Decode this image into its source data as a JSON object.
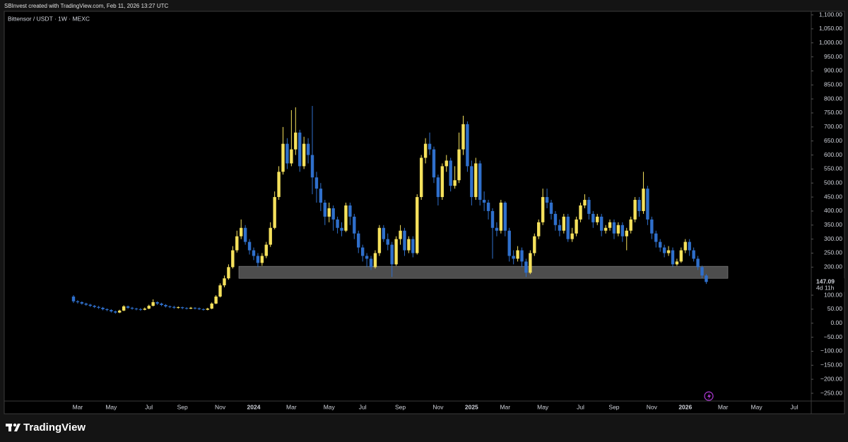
{
  "chart_data": {
    "type": "candlestick",
    "header": "SBInvest created with TradingView.com, Feb 11, 2026 13:27 UTC",
    "title": "Bittensor / USDT · 1W · MEXC",
    "brand": "TradingView",
    "up_color": "#f5e15c",
    "down_color": "#2f6fcb",
    "categories": [
      null,
      "Mar",
      null,
      null,
      null,
      null,
      null,
      null,
      null,
      "May",
      null,
      null,
      null,
      null,
      null,
      null,
      null,
      null,
      "Jul",
      null,
      null,
      null,
      null,
      null,
      null,
      null,
      "Sep",
      null,
      null,
      null,
      null,
      null,
      null,
      null,
      null,
      "Nov",
      null,
      null,
      null,
      null,
      null,
      null,
      null,
      "2024",
      null,
      null,
      null,
      null,
      null,
      null,
      null,
      null,
      "Mar",
      null,
      null,
      null,
      null,
      null,
      null,
      null,
      null,
      "May",
      null,
      null,
      null,
      null,
      null,
      null,
      null,
      "Jul",
      null,
      null,
      null,
      null,
      null,
      null,
      null,
      null,
      "Sep",
      null,
      null,
      null,
      null,
      null,
      null,
      null,
      null,
      "Nov",
      null,
      null,
      null,
      null,
      null,
      null,
      null,
      "2025",
      null,
      null,
      null,
      null,
      null,
      null,
      null,
      "Mar",
      null,
      null,
      null,
      null,
      null,
      null,
      null,
      null,
      "May",
      null,
      null,
      null,
      null,
      null,
      null,
      null,
      null,
      "Jul",
      null,
      null,
      null,
      null,
      null,
      null,
      null,
      "Sep",
      null,
      null,
      null,
      null,
      null,
      null,
      null,
      null,
      "Nov",
      null,
      null,
      null,
      null,
      null,
      null,
      null,
      "2026",
      null,
      null,
      null,
      null,
      null,
      null,
      null,
      null,
      "Mar",
      null,
      null,
      null,
      null,
      null,
      null,
      null,
      "May",
      null,
      null,
      null,
      null,
      null,
      null,
      null,
      null,
      "Jul",
      null,
      null,
      null
    ],
    "open": [
      95,
      78,
      75,
      70,
      66,
      62,
      58,
      55,
      50,
      47,
      42,
      38,
      45,
      60,
      55,
      52,
      50,
      48,
      52,
      62,
      75,
      70,
      65,
      60,
      58,
      55,
      57,
      54,
      52,
      55,
      53,
      50,
      48,
      52,
      70,
      95,
      135,
      160,
      200,
      260,
      310,
      340,
      290,
      260,
      240,
      215,
      240,
      280,
      340,
      450,
      540,
      640,
      570,
      620,
      680,
      560,
      640,
      600,
      520,
      480,
      430,
      380,
      410,
      370,
      340,
      330,
      420,
      380,
      320,
      270,
      240,
      230,
      200,
      250,
      340,
      300,
      280,
      210,
      300,
      330,
      260,
      300,
      250,
      450,
      590,
      640,
      620,
      520,
      450,
      560,
      580,
      490,
      510,
      620,
      710,
      560,
      450,
      570,
      440,
      430,
      400,
      340,
      330,
      430,
      330,
      240,
      230,
      260,
      220,
      180,
      250,
      310,
      360,
      450,
      430,
      390,
      350,
      330,
      380,
      300,
      320,
      370,
      420,
      440,
      390,
      360,
      380,
      330,
      340,
      360,
      320,
      350,
      310,
      330,
      370,
      440,
      400,
      480,
      370,
      320,
      290,
      270,
      250,
      260,
      210,
      220,
      260,
      290,
      260,
      230,
      200,
      170,
      null,
      null,
      null,
      null,
      null,
      null,
      null,
      null,
      null,
      null,
      null,
      null,
      null,
      null,
      null,
      null,
      null,
      null,
      null,
      null,
      null,
      null,
      null,
      null
    ],
    "high": [
      100,
      82,
      78,
      73,
      69,
      65,
      62,
      58,
      53,
      50,
      45,
      48,
      64,
      63,
      58,
      55,
      54,
      56,
      66,
      85,
      78,
      73,
      68,
      63,
      62,
      60,
      59,
      57,
      58,
      57,
      56,
      53,
      55,
      74,
      100,
      142,
      170,
      210,
      275,
      330,
      370,
      350,
      300,
      270,
      250,
      250,
      290,
      360,
      470,
      560,
      700,
      660,
      760,
      770,
      690,
      665,
      660,
      775,
      540,
      500,
      440,
      430,
      420,
      380,
      360,
      430,
      430,
      390,
      330,
      280,
      250,
      240,
      260,
      350,
      350,
      320,
      290,
      310,
      350,
      340,
      310,
      310,
      460,
      600,
      660,
      680,
      630,
      530,
      570,
      600,
      590,
      560,
      680,
      740,
      720,
      580,
      590,
      580,
      470,
      440,
      410,
      360,
      440,
      435,
      340,
      260,
      275,
      270,
      230,
      260,
      320,
      370,
      480,
      480,
      440,
      400,
      370,
      390,
      390,
      340,
      380,
      430,
      460,
      450,
      400,
      390,
      390,
      350,
      370,
      370,
      360,
      360,
      340,
      380,
      450,
      450,
      540,
      490,
      380,
      330,
      300,
      280,
      275,
      270,
      230,
      270,
      300,
      300,
      270,
      240,
      205,
      175,
      null,
      null,
      null,
      null,
      null,
      null,
      null,
      null,
      null,
      null,
      null,
      null,
      null,
      null,
      null,
      null,
      null,
      null,
      null,
      null,
      null,
      null,
      null,
      null
    ],
    "low": [
      72,
      70,
      66,
      62,
      58,
      54,
      51,
      46,
      43,
      38,
      34,
      36,
      43,
      51,
      48,
      46,
      44,
      46,
      50,
      60,
      65,
      61,
      56,
      54,
      51,
      52,
      50,
      49,
      50,
      49,
      47,
      45,
      46,
      50,
      68,
      92,
      128,
      155,
      195,
      252,
      300,
      280,
      245,
      225,
      200,
      205,
      232,
      272,
      335,
      440,
      530,
      550,
      560,
      600,
      540,
      550,
      570,
      460,
      430,
      400,
      350,
      360,
      330,
      320,
      310,
      325,
      350,
      300,
      250,
      220,
      200,
      190,
      195,
      240,
      290,
      260,
      165,
      205,
      280,
      240,
      250,
      235,
      245,
      440,
      570,
      600,
      500,
      420,
      440,
      540,
      470,
      480,
      500,
      600,
      540,
      420,
      440,
      420,
      400,
      370,
      230,
      310,
      320,
      310,
      220,
      210,
      220,
      200,
      165,
      175,
      240,
      300,
      350,
      410,
      370,
      330,
      310,
      320,
      290,
      290,
      310,
      360,
      410,
      370,
      340,
      350,
      310,
      320,
      330,
      300,
      310,
      290,
      260,
      320,
      360,
      380,
      390,
      350,
      300,
      270,
      255,
      235,
      240,
      200,
      205,
      215,
      250,
      240,
      220,
      190,
      160,
      140,
      null,
      null,
      null,
      null,
      null,
      null,
      null,
      null,
      null,
      null,
      null,
      null,
      null,
      null,
      null,
      null,
      null,
      null,
      null,
      null,
      null,
      null,
      null,
      null
    ],
    "close": [
      78,
      75,
      70,
      66,
      62,
      58,
      55,
      50,
      47,
      42,
      38,
      45,
      60,
      55,
      52,
      50,
      48,
      52,
      62,
      75,
      70,
      65,
      60,
      58,
      55,
      57,
      54,
      52,
      55,
      53,
      50,
      48,
      52,
      70,
      95,
      135,
      160,
      200,
      260,
      310,
      340,
      290,
      260,
      240,
      215,
      240,
      280,
      340,
      450,
      540,
      640,
      570,
      620,
      680,
      560,
      640,
      600,
      520,
      480,
      430,
      380,
      410,
      370,
      340,
      330,
      420,
      380,
      320,
      270,
      240,
      230,
      200,
      250,
      340,
      300,
      280,
      210,
      300,
      330,
      260,
      300,
      250,
      450,
      590,
      640,
      620,
      520,
      450,
      560,
      580,
      490,
      510,
      620,
      710,
      560,
      450,
      570,
      440,
      430,
      400,
      340,
      330,
      430,
      330,
      240,
      230,
      260,
      220,
      180,
      250,
      310,
      360,
      450,
      430,
      390,
      350,
      330,
      380,
      300,
      320,
      370,
      420,
      440,
      390,
      360,
      380,
      330,
      340,
      360,
      320,
      350,
      310,
      330,
      370,
      440,
      400,
      480,
      370,
      320,
      290,
      270,
      250,
      260,
      210,
      220,
      260,
      290,
      260,
      230,
      200,
      170,
      147.09,
      null,
      null,
      null,
      null,
      null,
      null,
      null,
      null,
      null,
      null,
      null,
      null,
      null,
      null,
      null,
      null,
      null,
      null,
      null,
      null,
      null,
      null,
      null,
      null
    ],
    "zone": [
      160,
      203
    ],
    "last_price": 147.09,
    "countdown": "4d 11h",
    "ylim": [
      -250,
      1100
    ],
    "yticks": [
      {
        "value": 1100,
        "label": "1,100.00"
      },
      {
        "value": 1050,
        "label": "1,050.00"
      },
      {
        "value": 1000,
        "label": "1,000.00"
      },
      {
        "value": 950,
        "label": "950.00"
      },
      {
        "value": 900,
        "label": "900.00"
      },
      {
        "value": 850,
        "label": "850.00"
      },
      {
        "value": 800,
        "label": "800.00"
      },
      {
        "value": 750,
        "label": "750.00"
      },
      {
        "value": 700,
        "label": "700.00"
      },
      {
        "value": 650,
        "label": "650.00"
      },
      {
        "value": 600,
        "label": "600.00"
      },
      {
        "value": 550,
        "label": "550.00"
      },
      {
        "value": 500,
        "label": "500.00"
      },
      {
        "value": 450,
        "label": "450.00"
      },
      {
        "value": 400,
        "label": "400.00"
      },
      {
        "value": 350,
        "label": "350.00"
      },
      {
        "value": 300,
        "label": "300.00"
      },
      {
        "value": 250,
        "label": "250.00"
      },
      {
        "value": 200,
        "label": "200.00"
      },
      {
        "value": 100,
        "label": "100.00"
      },
      {
        "value": 50,
        "label": "50.00"
      },
      {
        "value": 0,
        "label": "0.00"
      },
      {
        "value": -50,
        "label": "−50.00"
      },
      {
        "value": -100,
        "label": "−100.00"
      },
      {
        "value": -150,
        "label": "−150.00"
      },
      {
        "value": -200,
        "label": "−200.00"
      },
      {
        "value": -250,
        "label": "−250.00"
      }
    ],
    "grid": false
  }
}
